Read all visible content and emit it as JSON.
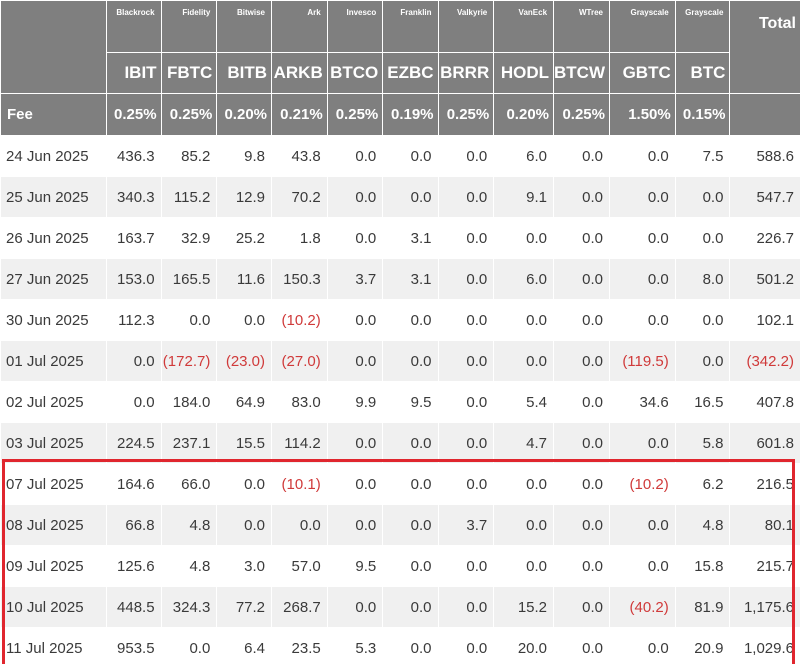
{
  "issuers": [
    "Blackrock",
    "Fidelity",
    "Bitwise",
    "Ark",
    "Invesco",
    "Franklin",
    "Valkyrie",
    "VanEck",
    "WTree",
    "Grayscale",
    "Grayscale"
  ],
  "tickers": [
    "IBIT",
    "FBTC",
    "BITB",
    "ARKB",
    "BTCO",
    "EZBC",
    "BRRR",
    "HODL",
    "BTCW",
    "GBTC",
    "BTC"
  ],
  "total_label": "Total",
  "fee_label": "Fee",
  "fees": [
    "0.25%",
    "0.25%",
    "0.20%",
    "0.21%",
    "0.25%",
    "0.19%",
    "0.25%",
    "0.20%",
    "0.25%",
    "1.50%",
    "0.15%"
  ],
  "rows": [
    {
      "date": "24 Jun 2025",
      "values": [
        "436.3",
        "85.2",
        "9.8",
        "43.8",
        "0.0",
        "0.0",
        "0.0",
        "6.0",
        "0.0",
        "0.0",
        "7.5"
      ],
      "total": "588.6"
    },
    {
      "date": "25 Jun 2025",
      "values": [
        "340.3",
        "115.2",
        "12.9",
        "70.2",
        "0.0",
        "0.0",
        "0.0",
        "9.1",
        "0.0",
        "0.0",
        "0.0"
      ],
      "total": "547.7"
    },
    {
      "date": "26 Jun 2025",
      "values": [
        "163.7",
        "32.9",
        "25.2",
        "1.8",
        "0.0",
        "3.1",
        "0.0",
        "0.0",
        "0.0",
        "0.0",
        "0.0"
      ],
      "total": "226.7"
    },
    {
      "date": "27 Jun 2025",
      "values": [
        "153.0",
        "165.5",
        "11.6",
        "150.3",
        "3.7",
        "3.1",
        "0.0",
        "6.0",
        "0.0",
        "0.0",
        "8.0"
      ],
      "total": "501.2"
    },
    {
      "date": "30 Jun 2025",
      "values": [
        "112.3",
        "0.0",
        "0.0",
        "(10.2)",
        "0.0",
        "0.0",
        "0.0",
        "0.0",
        "0.0",
        "0.0",
        "0.0"
      ],
      "total": "102.1"
    },
    {
      "date": "01 Jul 2025",
      "values": [
        "0.0",
        "(172.7)",
        "(23.0)",
        "(27.0)",
        "0.0",
        "0.0",
        "0.0",
        "0.0",
        "0.0",
        "(119.5)",
        "0.0"
      ],
      "total": "(342.2)"
    },
    {
      "date": "02 Jul 2025",
      "values": [
        "0.0",
        "184.0",
        "64.9",
        "83.0",
        "9.9",
        "9.5",
        "0.0",
        "5.4",
        "0.0",
        "34.6",
        "16.5"
      ],
      "total": "407.8"
    },
    {
      "date": "03 Jul 2025",
      "values": [
        "224.5",
        "237.1",
        "15.5",
        "114.2",
        "0.0",
        "0.0",
        "0.0",
        "4.7",
        "0.0",
        "0.0",
        "5.8"
      ],
      "total": "601.8"
    },
    {
      "date": "07 Jul 2025",
      "values": [
        "164.6",
        "66.0",
        "0.0",
        "(10.1)",
        "0.0",
        "0.0",
        "0.0",
        "0.0",
        "0.0",
        "(10.2)",
        "6.2"
      ],
      "total": "216.5"
    },
    {
      "date": "08 Jul 2025",
      "values": [
        "66.8",
        "4.8",
        "0.0",
        "0.0",
        "0.0",
        "0.0",
        "3.7",
        "0.0",
        "0.0",
        "0.0",
        "4.8"
      ],
      "total": "80.1"
    },
    {
      "date": "09 Jul 2025",
      "values": [
        "125.6",
        "4.8",
        "3.0",
        "57.0",
        "9.5",
        "0.0",
        "0.0",
        "0.0",
        "0.0",
        "0.0",
        "15.8"
      ],
      "total": "215.7"
    },
    {
      "date": "10 Jul 2025",
      "values": [
        "448.5",
        "324.3",
        "77.2",
        "268.7",
        "0.0",
        "0.0",
        "0.0",
        "15.2",
        "0.0",
        "(40.2)",
        "81.9"
      ],
      "total": "1,175.6"
    },
    {
      "date": "11 Jul 2025",
      "values": [
        "953.5",
        "0.0",
        "6.4",
        "23.5",
        "5.3",
        "0.0",
        "0.0",
        "20.0",
        "0.0",
        "0.0",
        "20.9"
      ],
      "total": "1,029.6"
    }
  ],
  "colors": {
    "header_bg": "#7f7f7f",
    "negative": "#d03a3a",
    "highlight_border": "#e0262e",
    "shaded_row": "#f0f0f0"
  }
}
